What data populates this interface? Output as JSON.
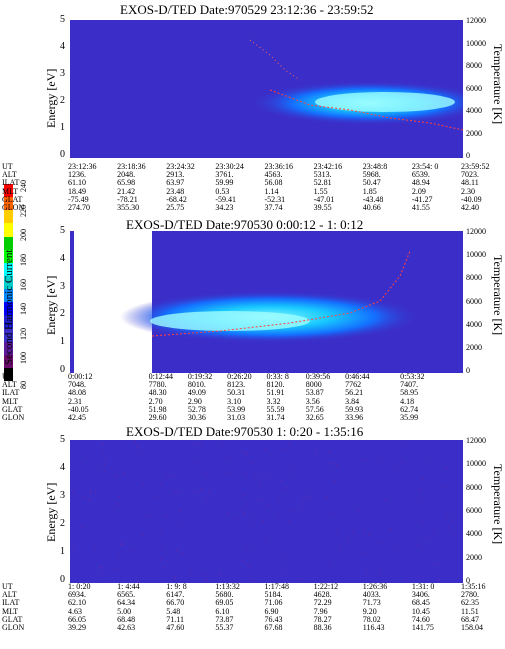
{
  "panels": [
    {
      "title": "EXOS-D/TED   Date:970529  23:12:36 - 23:59:52",
      "y_axis_label": "Energy [eV]",
      "y2_axis_label": "Temperature [K]",
      "y_ticks": [
        "5",
        "4",
        "3",
        "2",
        "1",
        "0"
      ],
      "y2_ticks": [
        "12000",
        "10000",
        "8000",
        "6000",
        "4000",
        "2000",
        "0"
      ],
      "table": {
        "labels": [
          "UT",
          "ALT",
          "ILAT",
          "MLT",
          "GLAT",
          "GLON"
        ],
        "columns": [
          [
            "23:12:36",
            "1236.",
            "61.10",
            "18.49",
            "-75.49",
            "274.70"
          ],
          [
            "23:18:36",
            "2048.",
            "65.98",
            "21.42",
            "-78.21",
            "355.30"
          ],
          [
            "23:24:32",
            "2913.",
            "63.97",
            "23.48",
            "-68.42",
            "25.75"
          ],
          [
            "23:30:24",
            "3761.",
            "59.99",
            "0.53",
            "-59.41",
            "34.23"
          ],
          [
            "23:36:16",
            "4563.",
            "56.08",
            "1.14",
            "-52.31",
            "37.74"
          ],
          [
            "23:42:16",
            "5313.",
            "52.81",
            "1.55",
            "-47.01",
            "39.55"
          ],
          [
            "23:48:8",
            "5968.",
            "50.47",
            "1.85",
            "-43.48",
            "40.66"
          ],
          [
            "23:54: 0",
            "6539.",
            "48.94",
            "2.09",
            "-41.27",
            "41.55"
          ],
          [
            "23:59:52",
            "7023.",
            "48.11",
            "2.30",
            "-40.09",
            "42.40"
          ]
        ]
      }
    },
    {
      "title": "EXOS-D/TED   Date:970530  0:00:12 - 1: 0:12",
      "y_axis_label": "Energy [eV]",
      "y2_axis_label": "Temperature [K]",
      "y_ticks": [
        "5",
        "4",
        "3",
        "2",
        "1",
        "0"
      ],
      "y2_ticks": [
        "12000",
        "10000",
        "8000",
        "6000",
        "4000",
        "2000",
        "0"
      ],
      "table": {
        "labels": [
          "UT",
          "ALT",
          "ILAT",
          "MLT",
          "GLAT",
          "GLON"
        ],
        "columns": [
          [
            "0:00:12",
            "7048.",
            "48.08",
            "2.31",
            "-40.05",
            "42.45"
          ],
          [
            "0:12:44",
            "7780.",
            "48.30",
            "2.70",
            "51.98",
            "29.60"
          ],
          [
            "0:19:32",
            "8010.",
            "49.09",
            "2.90",
            "52.78",
            "30.36"
          ],
          [
            "0:26:20",
            "8123.",
            "50.31",
            "3.10",
            "53.99",
            "31.03"
          ],
          [
            "0:33: 8",
            "8120.",
            "51.91",
            "3.32",
            "55.59",
            "31.74"
          ],
          [
            "0:39:56",
            "8000",
            "53.87",
            "3.56",
            "57.56",
            "32.65"
          ],
          [
            "0:46:44",
            "7762",
            "56.21",
            "3.84",
            "59.93",
            "33.96"
          ],
          [
            "0:53:32",
            "7407.",
            "58.95",
            "4.18",
            "62.74",
            "35.99"
          ]
        ]
      }
    },
    {
      "title": "EXOS-D/TED   Date:970530  1: 0:20 - 1:35:16",
      "y_axis_label": "Energy [eV]",
      "y2_axis_label": "Temperature [K]",
      "y_ticks": [
        "5",
        "4",
        "3",
        "2",
        "1",
        "0"
      ],
      "y2_ticks": [
        "12000",
        "10000",
        "8000",
        "6000",
        "4000",
        "2000",
        "0"
      ],
      "table": {
        "labels": [
          "UT",
          "ALT",
          "ILAT",
          "MLT",
          "GLAT",
          "GLON"
        ],
        "columns": [
          [
            "1: 0:20",
            "6934.",
            "62.10",
            "4.63",
            "66.05",
            "39.29"
          ],
          [
            "1: 4:44",
            "6565.",
            "64.34",
            "5.00",
            "68.48",
            "42.63"
          ],
          [
            "1: 9: 8",
            "6147.",
            "66.70",
            "5.48",
            "71.11",
            "47.60"
          ],
          [
            "1:13:32",
            "5680.",
            "69.05",
            "6.10",
            "73.87",
            "55.37"
          ],
          [
            "1:17:48",
            "5184.",
            "71.06",
            "6.90",
            "76.43",
            "67.68"
          ],
          [
            "1:22:12",
            "4628.",
            "72.29",
            "7.96",
            "78.27",
            "88.36"
          ],
          [
            "1:26:36",
            "4033.",
            "71.73",
            "9.20",
            "78.02",
            "116.43"
          ],
          [
            "1:31: 0",
            "3406.",
            "68.45",
            "10.45",
            "74.60",
            "141.75"
          ],
          [
            "1:35:16",
            "2780.",
            "62.35",
            "11.51",
            "68.47",
            "158.04"
          ]
        ]
      }
    }
  ],
  "colorbar": {
    "label": "Second Harmonic Current",
    "ticks": [
      "240",
      "220",
      "200",
      "180",
      "160",
      "140",
      "120",
      "100",
      "80"
    ],
    "colors": [
      "#ff0000",
      "#ff6600",
      "#ffcc00",
      "#ffff00",
      "#00cc00",
      "#00ff00",
      "#00ffff",
      "#00cccc",
      "#0088ff",
      "#0000ff",
      "#1f1fd0",
      "#3b2ec8",
      "#5a1a9a",
      "#6a0a6a",
      "#000000"
    ]
  }
}
